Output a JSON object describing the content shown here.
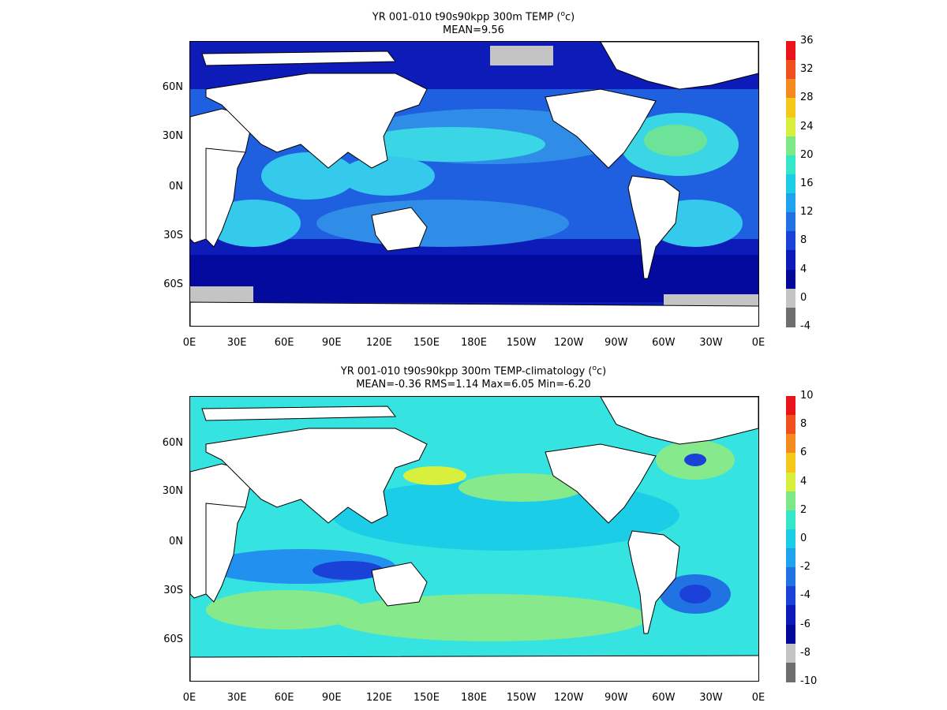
{
  "top_panel": {
    "title_main": "YR 001-010 t90s90kpp 300m TEMP (",
    "title_sup": "o",
    "title_end": "c)",
    "subtitle": "MEAN=9.56",
    "colorbar_labels": [
      "36",
      "32",
      "28",
      "24",
      "20",
      "16",
      "12",
      "8",
      "4",
      "0",
      "-4"
    ],
    "colorbar_colors": [
      "#e8141a",
      "#f0501e",
      "#f58a1e",
      "#f7c81c",
      "#d8ef3e",
      "#7de887",
      "#36e6c8",
      "#1ccde8",
      "#20a3ee",
      "#2173e3",
      "#1a42d8",
      "#0b1ab8",
      "#04089a",
      "#c4c4c4",
      "#6e6e6e"
    ]
  },
  "bottom_panel": {
    "title_main": "YR 001-010 t90s90kpp 300m TEMP-climatology (",
    "title_sup": "o",
    "title_end": "c)",
    "subtitle": "MEAN=-0.36   RMS=1.14   Max=6.05   Min=-6.20",
    "colorbar_labels": [
      "10",
      "8",
      "6",
      "4",
      "2",
      "0",
      "-2",
      "-4",
      "-6",
      "-8",
      "-10"
    ],
    "colorbar_colors": [
      "#e8141a",
      "#f0501e",
      "#f58a1e",
      "#f7c81c",
      "#d8ef3e",
      "#7de887",
      "#36e6c8",
      "#1ccde8",
      "#20a3ee",
      "#2173e3",
      "#1a42d8",
      "#0b1ab8",
      "#04089a",
      "#c4c4c4",
      "#6e6e6e"
    ]
  },
  "axes": {
    "x_ticks": [
      "0E",
      "30E",
      "60E",
      "90E",
      "120E",
      "150E",
      "180E",
      "150W",
      "120W",
      "90W",
      "60W",
      "30W",
      "0E"
    ],
    "y_ticks": [
      "60N",
      "30N",
      "0N",
      "30S",
      "60S"
    ]
  },
  "colors": {
    "land": "#ffffff",
    "coast": "#000000",
    "top_ocean_deep": "#0d1cb8",
    "top_ocean_mid": "#2b6fe3",
    "top_ocean_warm": "#3ad6e6",
    "top_ocean_green": "#6de39a",
    "bottom_ocean_base": "#35e4e0",
    "bottom_ocean_blue": "#2290ee",
    "bottom_ocean_green": "#86ea8c",
    "ice_grey": "#c4c4c4"
  }
}
